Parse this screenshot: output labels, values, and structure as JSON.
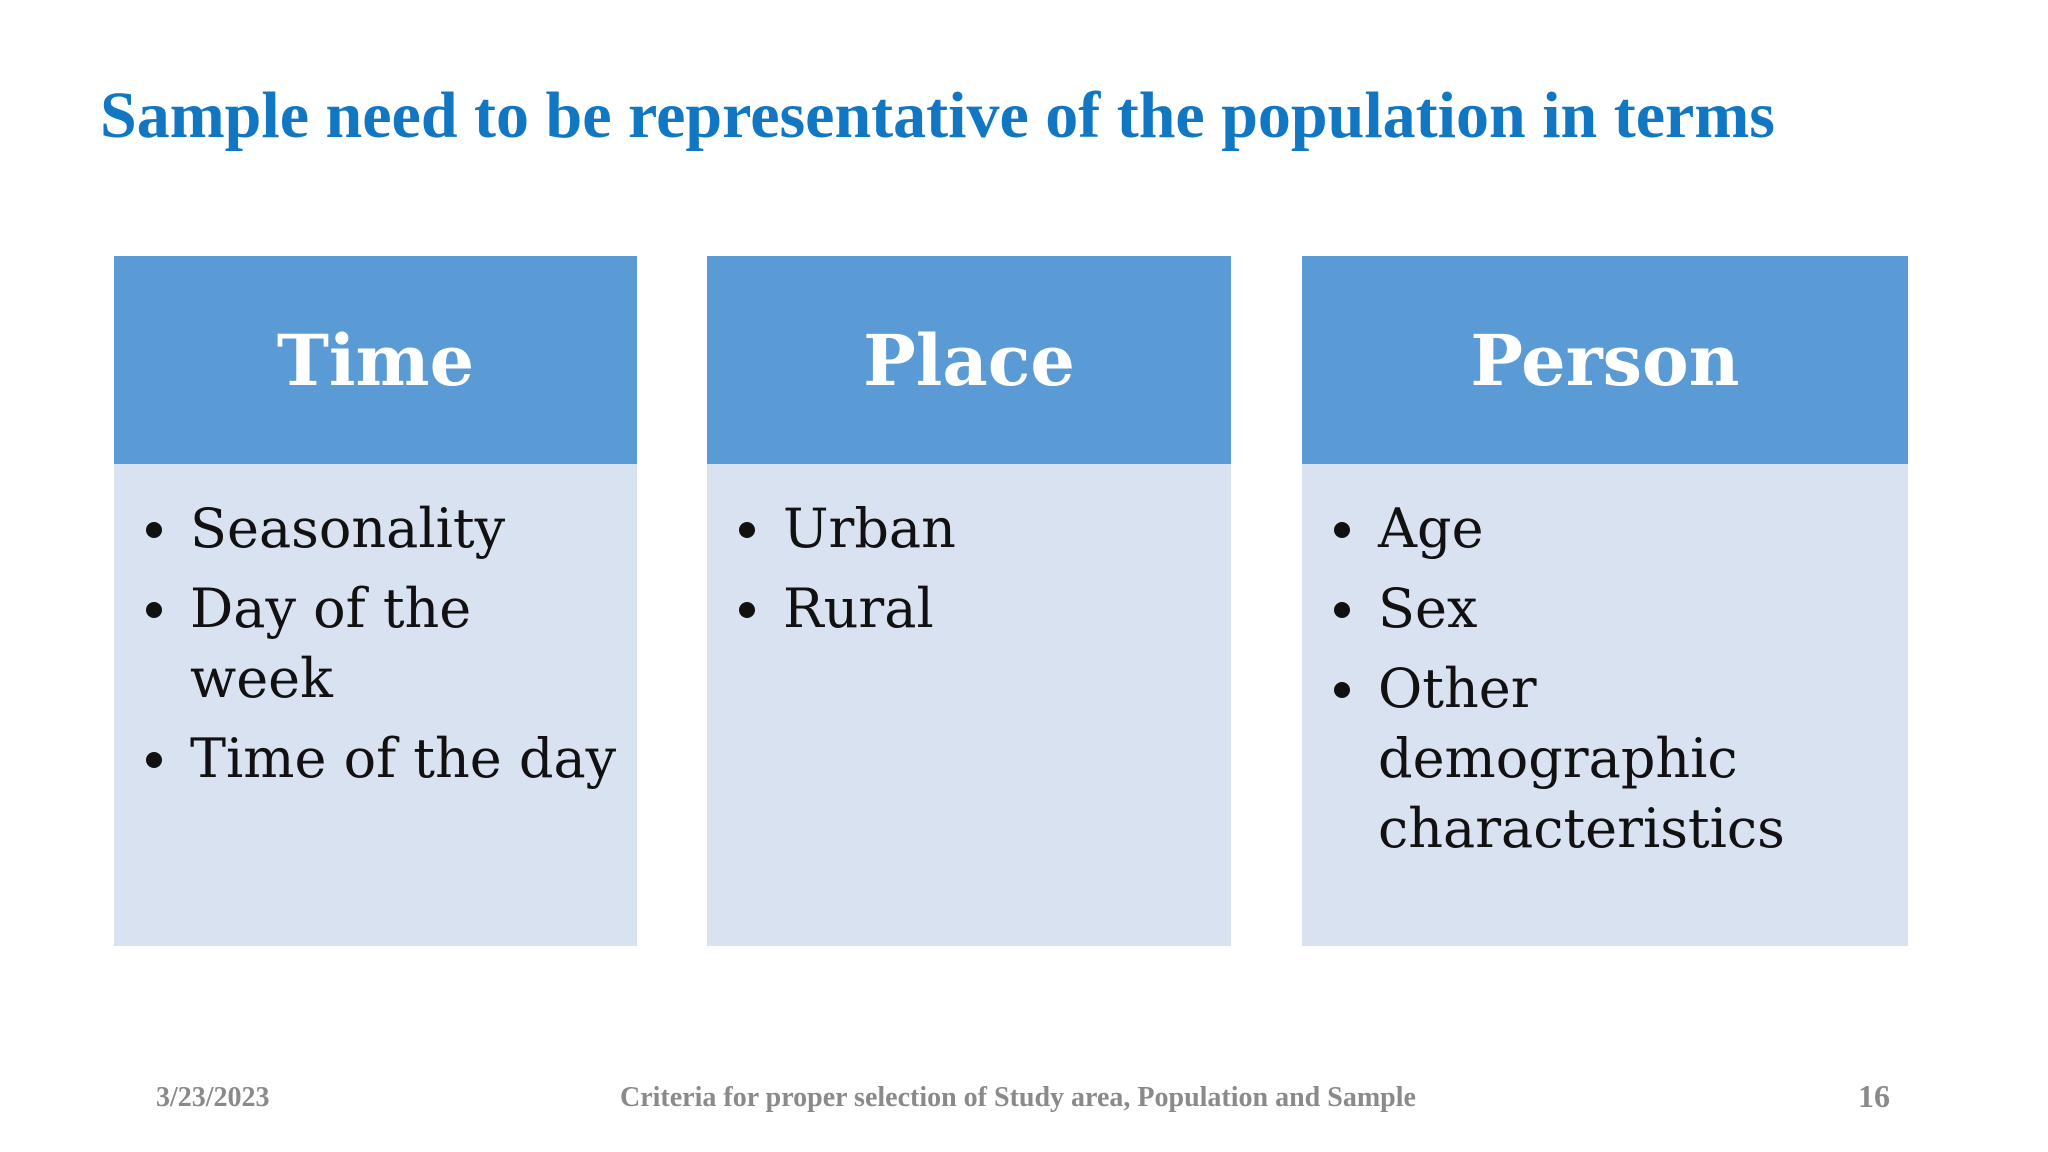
{
  "slide": {
    "title": "Sample need to be representative of the population in terms",
    "columns": [
      {
        "header": "Time",
        "items": [
          "Seasonality",
          "Day of the week",
          "Time of the day"
        ]
      },
      {
        "header": "Place",
        "items": [
          "Urban",
          "Rural"
        ]
      },
      {
        "header": "Person",
        "items": [
          "Age",
          "Sex",
          "Other demographic characteristics"
        ]
      }
    ]
  },
  "footer": {
    "date": "3/23/2023",
    "caption": "Criteria for proper selection of Study area, Population and Sample",
    "page_number": "16"
  },
  "colors": {
    "title": "#1277c2",
    "header_fill": "#5b9bd5",
    "body_fill": "#d9e2f0",
    "footer_text": "#8a8a8a"
  }
}
